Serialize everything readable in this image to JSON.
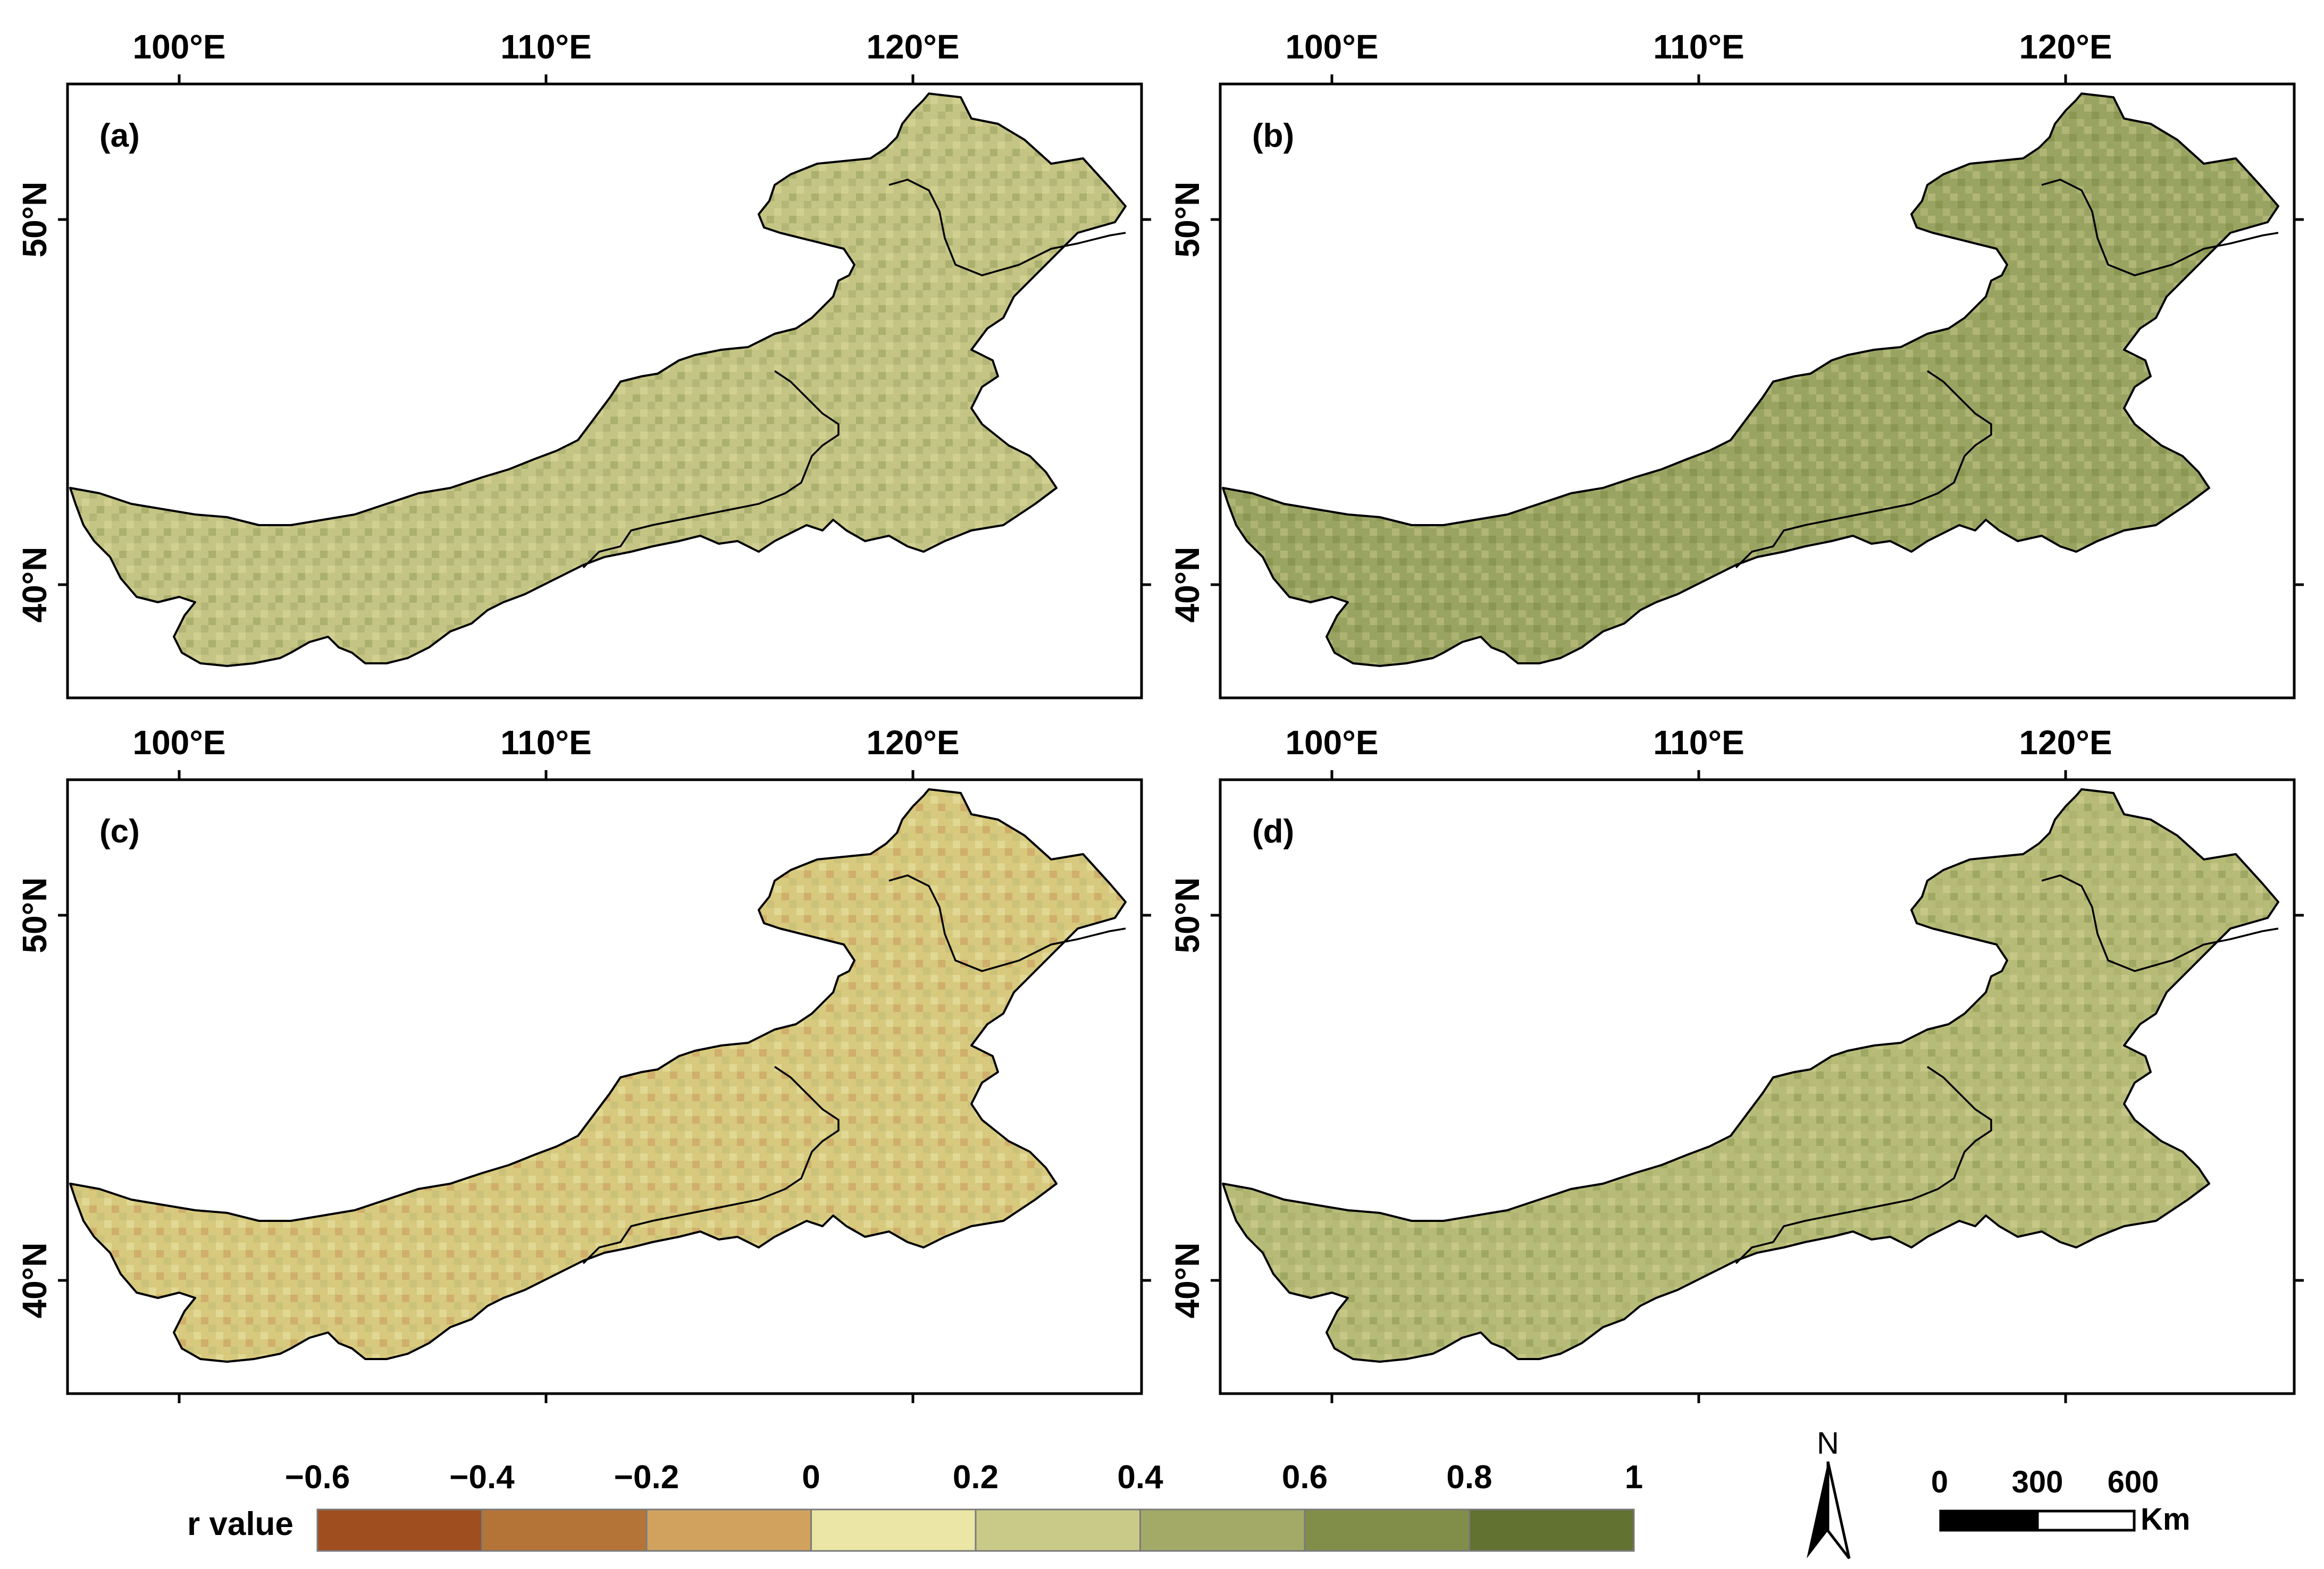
{
  "colors": {
    "ramp": [
      "#9f4f1f",
      "#b57437",
      "#d1a25e",
      "#ebe6a6",
      "#c9ca88",
      "#a3aa68",
      "#818e49",
      "#627230"
    ],
    "land_base": [
      "#c4c484",
      "#9aa462",
      "#d7c97d",
      "#cfcf8d"
    ],
    "outline": "#000000"
  },
  "longitude_labels": [
    "100°E",
    "110°E",
    "120°E"
  ],
  "latitude_labels": [
    "50°N",
    "40°N"
  ],
  "panels": [
    {
      "label": "(a)"
    },
    {
      "label": "(b)"
    },
    {
      "label": "(c)"
    },
    {
      "label": "(d)"
    }
  ],
  "legend": {
    "title": "r value",
    "ticks": [
      "−0.6",
      "−0.4",
      "−0.2",
      "0",
      "0.2",
      "0.4",
      "0.6",
      "0.8",
      "1"
    ]
  },
  "north_arrow": {
    "label": "N"
  },
  "scale_bar": {
    "ticks": [
      "0",
      "300",
      "600"
    ],
    "unit": "Km"
  }
}
